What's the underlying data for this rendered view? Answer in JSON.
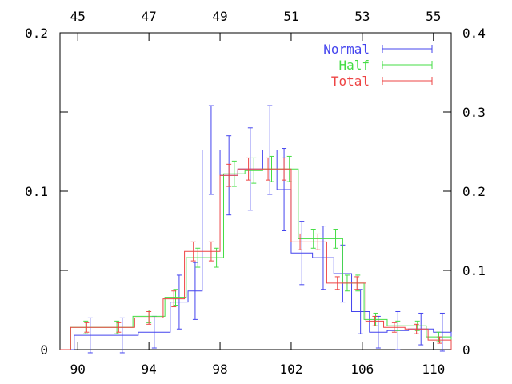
{
  "chart_data": {
    "type": "line",
    "title": "",
    "xlabel": "",
    "ylabel": "",
    "xlim": [
      89.0,
      111.0
    ],
    "ylim": [
      0,
      0.2
    ],
    "xticks": [
      90,
      94,
      98,
      102,
      106,
      110
    ],
    "xtick_labels": [
      "90",
      "94",
      "98",
      "102",
      "106",
      "110"
    ],
    "yticks": [
      0,
      0.1,
      0.2
    ],
    "ytick_labels": [
      "0",
      "0.1",
      "0.2"
    ],
    "top_axis": {
      "range": [
        44.5,
        55.5
      ],
      "ticks": [
        45,
        47,
        49,
        51,
        53,
        55
      ],
      "labels": [
        "45",
        "47",
        "49",
        "51",
        "53",
        "55"
      ]
    },
    "right_axis": {
      "range": [
        0,
        0.4
      ],
      "ticks": [
        0,
        0.1,
        0.2,
        0.3,
        0.4
      ],
      "labels": [
        "0",
        "0.1",
        "0.2",
        "0.3",
        "0.4"
      ]
    },
    "legend_position": "top-right",
    "grid": false,
    "series": [
      {
        "name": "Normal",
        "color": "#4444ee",
        "bin_edges": [
          89.0,
          89.8,
          91.6,
          93.4,
          95.2,
          96.2,
          97.0,
          98.0,
          99.0,
          100.4,
          101.2,
          102.0,
          103.2,
          104.4,
          105.4,
          106.4,
          107.4,
          108.6,
          110.0,
          111.0
        ],
        "values": [
          0.0,
          0.009,
          0.009,
          0.011,
          0.03,
          0.037,
          0.126,
          0.11,
          0.114,
          0.126,
          0.101,
          0.061,
          0.058,
          0.048,
          0.024,
          0.011,
          0.012,
          0.013,
          0.011
        ],
        "errors": [
          0.0,
          0.011,
          0.011,
          0.01,
          0.017,
          0.018,
          0.028,
          0.025,
          0.026,
          0.028,
          0.026,
          0.02,
          0.02,
          0.018,
          0.014,
          0.01,
          0.012,
          0.01,
          0.012
        ]
      },
      {
        "name": "Half",
        "color": "#44dd44",
        "bin_edges": [
          89.0,
          89.6,
          91.3,
          93.1,
          94.9,
          96.1,
          97.4,
          98.2,
          99.4,
          100.4,
          101.4,
          102.4,
          104.1,
          104.9,
          105.4,
          106.1,
          107.4,
          108.6,
          109.6,
          111.0
        ],
        "values": [
          0.0,
          0.014,
          0.014,
          0.021,
          0.033,
          0.058,
          0.058,
          0.111,
          0.113,
          0.114,
          0.114,
          0.07,
          0.07,
          0.042,
          0.042,
          0.019,
          0.015,
          0.015,
          0.008
        ],
        "errors": [
          0.0,
          0.004,
          0.004,
          0.004,
          0.005,
          0.006,
          0.006,
          0.008,
          0.008,
          0.008,
          0.008,
          0.006,
          0.006,
          0.005,
          0.005,
          0.004,
          0.003,
          0.003,
          0.003
        ]
      },
      {
        "name": "Total",
        "color": "#ee4444",
        "bin_edges": [
          89.0,
          89.6,
          91.4,
          93.2,
          94.8,
          96.0,
          97.0,
          98.0,
          99.0,
          100.2,
          101.2,
          102.0,
          103.0,
          104.0,
          105.2,
          106.2,
          107.2,
          108.4,
          109.7,
          111.0
        ],
        "values": [
          0.0,
          0.014,
          0.014,
          0.02,
          0.032,
          0.062,
          0.062,
          0.11,
          0.114,
          0.114,
          0.114,
          0.068,
          0.068,
          0.042,
          0.042,
          0.018,
          0.014,
          0.013,
          0.006
        ],
        "errors": [
          0.0,
          0.003,
          0.003,
          0.004,
          0.005,
          0.006,
          0.006,
          0.007,
          0.007,
          0.007,
          0.007,
          0.005,
          0.005,
          0.004,
          0.004,
          0.003,
          0.003,
          0.003,
          0.002
        ]
      }
    ]
  }
}
